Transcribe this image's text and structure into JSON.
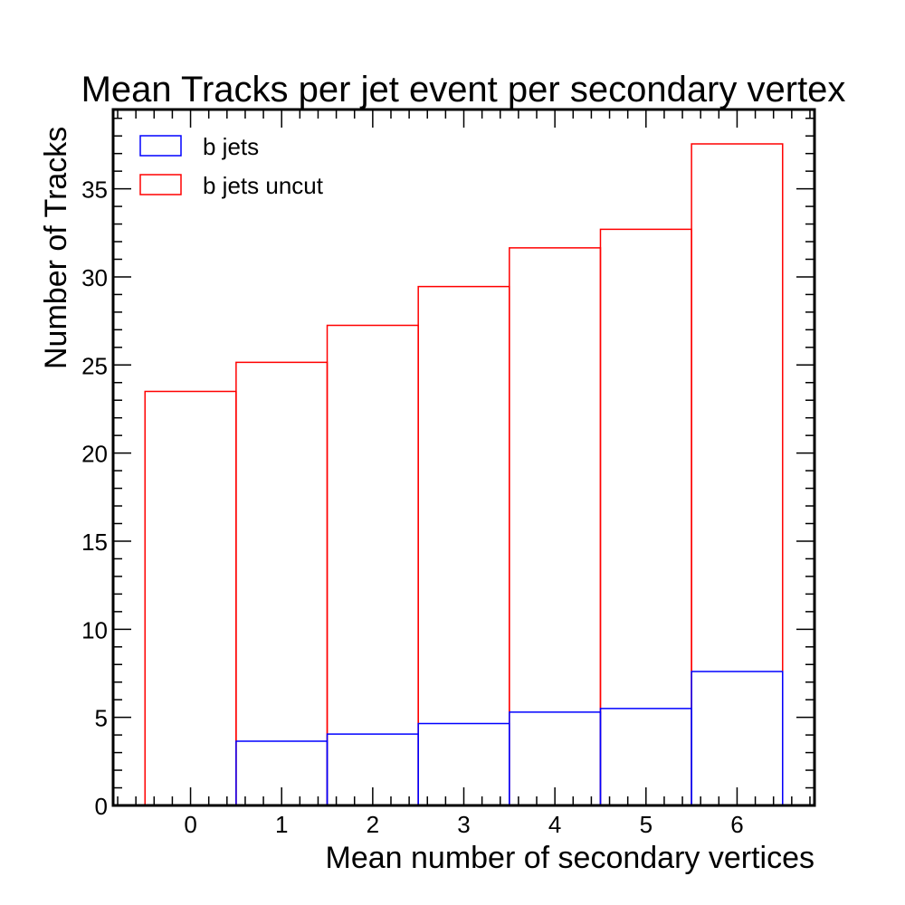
{
  "chart_data": {
    "type": "bar",
    "title": "Mean Tracks per jet event per secondary vertex",
    "xlabel": "Mean number of secondary vertices",
    "ylabel": "Number of Tracks",
    "xlim": [
      -0.85,
      6.85
    ],
    "ylim": [
      0,
      39.5
    ],
    "x_ticks": [
      0,
      1,
      2,
      3,
      4,
      5,
      6
    ],
    "y_ticks": [
      0,
      5,
      10,
      15,
      20,
      25,
      30,
      35
    ],
    "bin_edges": [
      -0.5,
      0.5,
      1.5,
      2.5,
      3.5,
      4.5,
      5.5,
      6.5
    ],
    "grid": false,
    "legend_position": "top-left",
    "series": [
      {
        "name": "b jets",
        "color": "#0000ff",
        "values": [
          0.0,
          3.65,
          4.05,
          4.65,
          5.3,
          5.5,
          7.6
        ]
      },
      {
        "name": "b jets uncut",
        "color": "#ff0000",
        "values": [
          23.5,
          25.15,
          27.25,
          29.45,
          31.65,
          32.7,
          37.55
        ]
      }
    ]
  }
}
